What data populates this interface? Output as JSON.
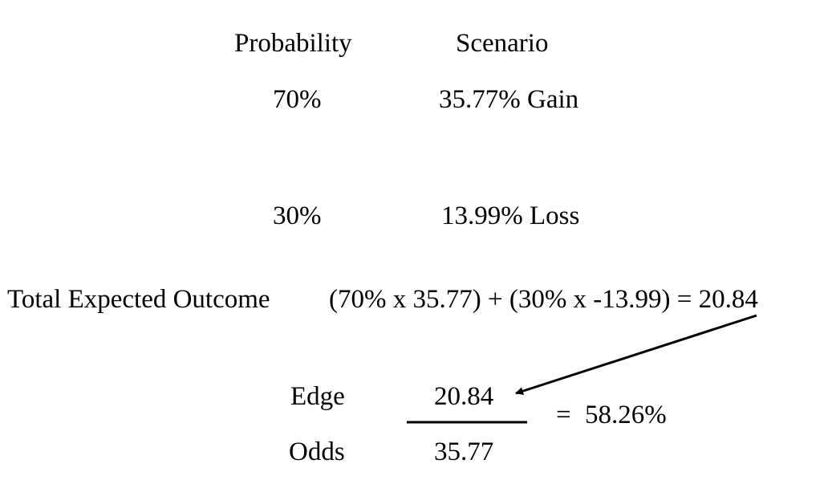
{
  "headers": {
    "probability": "Probability",
    "scenario": "Scenario"
  },
  "rows": [
    {
      "probability": "70%",
      "scenario": "35.77% Gain"
    },
    {
      "probability": "30%",
      "scenario": "13.99% Loss"
    }
  ],
  "total": {
    "label": "Total Expected Outcome",
    "formula": "(70% x 35.77) + (30% x -13.99) = 20.84"
  },
  "fraction": {
    "numerator_label": "Edge",
    "numerator_value": "20.84",
    "denominator_label": "Odds",
    "denominator_value": "35.77",
    "equals": "=",
    "result": "58.26%"
  }
}
